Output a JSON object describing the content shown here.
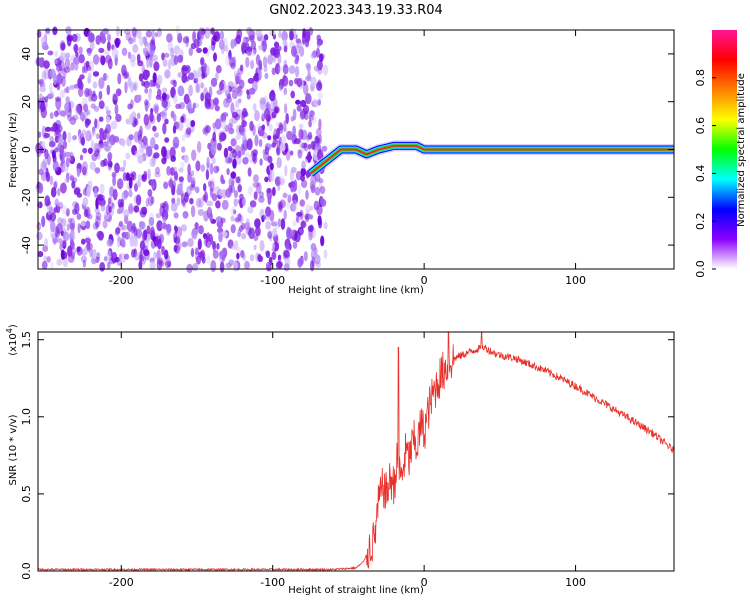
{
  "title": "GN02.2023.343.19.33.R04",
  "chart_data": [
    {
      "type": "heatmap",
      "xlabel": "Height of straight line (km)",
      "ylabel": "Frequency (Hz)",
      "xlim": [
        -255,
        165
      ],
      "ylim": [
        -50,
        50
      ],
      "xticks": [
        -200,
        -100,
        0,
        100
      ],
      "yticks": [
        -40,
        -20,
        0,
        20,
        40
      ],
      "noise_region": {
        "x_from": -255,
        "x_to": -65,
        "description_level": "scattered low-amplitude noise"
      },
      "signal_track": [
        {
          "x": -75,
          "y": -10
        },
        {
          "x": -65,
          "y": -5
        },
        {
          "x": -55,
          "y": 0
        },
        {
          "x": -45,
          "y": 0
        },
        {
          "x": -38,
          "y": -2
        },
        {
          "x": -30,
          "y": 0
        },
        {
          "x": -20,
          "y": 1.5
        },
        {
          "x": -5,
          "y": 1.5
        },
        {
          "x": 0,
          "y": 0
        },
        {
          "x": 165,
          "y": 0
        }
      ],
      "colorbar": {
        "label": "Normalized spectral amplitude",
        "range": [
          0,
          1
        ],
        "ticks": [
          "0.0",
          "0.2",
          "0.4",
          "0.6",
          "0.8"
        ],
        "tick_values": [
          0,
          0.2,
          0.4,
          0.6,
          0.8
        ],
        "colors": [
          "#ffffff",
          "#8b00ff",
          "#0000ff",
          "#00ffff",
          "#00ff00",
          "#ffff00",
          "#ff7f00",
          "#ff0000",
          "#ff1493"
        ]
      }
    },
    {
      "type": "line",
      "xlabel": "Height of straight line (km)",
      "ylabel": "SNR (10 * v/v)",
      "exponent_label": "(x10",
      "exponent_power": "4",
      "exponent_close": ")",
      "xlim": [
        -255,
        165
      ],
      "ylim": [
        0,
        1.55
      ],
      "xticks": [
        -200,
        -100,
        0,
        100
      ],
      "yticks": [
        0.0,
        0.5,
        1.0,
        1.5
      ],
      "ytick_labels": [
        "0.0",
        "0.5",
        "1.0",
        "1.5"
      ],
      "color": "#e8302a",
      "series": [
        {
          "x": [
            -255,
            -200,
            -150,
            -100,
            -60,
            -45,
            -40,
            -36,
            -33,
            -30,
            -27,
            -25,
            -22,
            -20,
            -18,
            -15,
            -12,
            -10,
            -7,
            -5,
            -2,
            0,
            3,
            6,
            10,
            13,
            16,
            20,
            25,
            30,
            35,
            40,
            45,
            50,
            60,
            70,
            80,
            90,
            100,
            110,
            120,
            130,
            140,
            150,
            160,
            165
          ],
          "values": [
            0.01,
            0.01,
            0.01,
            0.01,
            0.01,
            0.02,
            0.06,
            0.15,
            0.2,
            0.45,
            0.55,
            0.5,
            0.6,
            0.55,
            0.7,
            0.6,
            0.78,
            0.72,
            0.85,
            0.8,
            0.95,
            0.9,
            1.05,
            1.15,
            1.25,
            1.3,
            1.35,
            1.38,
            1.4,
            1.42,
            1.44,
            1.45,
            1.42,
            1.4,
            1.38,
            1.34,
            1.3,
            1.25,
            1.2,
            1.14,
            1.08,
            1.02,
            0.96,
            0.9,
            0.82,
            0.78
          ]
        }
      ],
      "spikes": [
        {
          "x": -17,
          "y": 1.45
        },
        {
          "x": 16,
          "y": 1.58
        },
        {
          "x": 38,
          "y": 1.55
        }
      ]
    }
  ]
}
